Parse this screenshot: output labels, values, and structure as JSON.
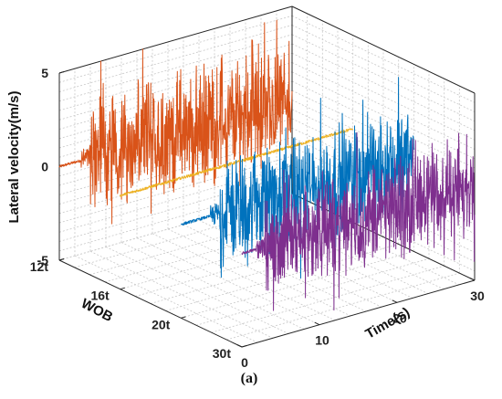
{
  "chart_data": {
    "type": "line",
    "subtype": "3d-waterfall",
    "caption": "(a)",
    "title": "",
    "xlabel": "Time(s)",
    "ylabel": "WOB",
    "zlabel": "Lateral velocity(m/s)",
    "xlim": [
      0,
      30
    ],
    "zlim": [
      -5,
      5
    ],
    "x_ticks": [
      "0",
      "10",
      "20",
      "30"
    ],
    "y_ticks": [
      "12t",
      "16t",
      "20t",
      "30t"
    ],
    "z_ticks": [
      "-5",
      "0",
      "5"
    ],
    "grid": true,
    "series": [
      {
        "wob": "30t",
        "color": "#D95319",
        "steady_until_s": 4,
        "amplitude_mps": 3.6
      },
      {
        "wob": "20t",
        "color": "#EDB120",
        "steady_until_s": 30,
        "amplitude_mps": 0.1
      },
      {
        "wob": "16t",
        "color": "#0072BD",
        "steady_until_s": 5,
        "amplitude_mps": 3.3
      },
      {
        "wob": "12t",
        "color": "#7E2F8E",
        "steady_until_s": 3,
        "amplitude_mps": 3.0
      }
    ]
  }
}
